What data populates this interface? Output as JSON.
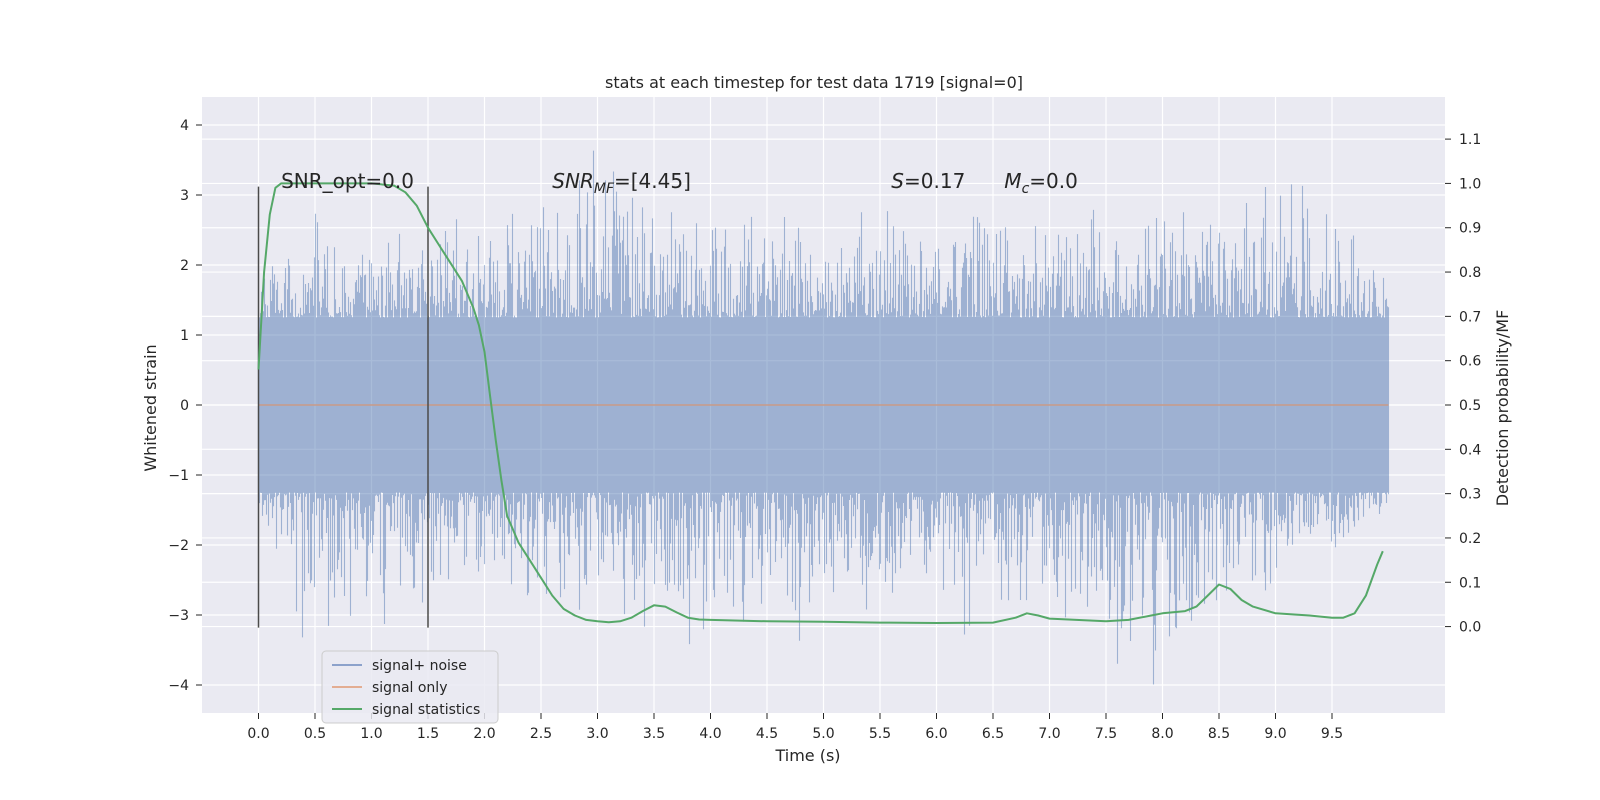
{
  "chart_data": {
    "type": "line",
    "title": "stats at each timestep for test data 1719 [signal=0]",
    "xlabel": "Time (s)",
    "ylabel": "Whitened strain",
    "y2label": "Detection probability/MF",
    "xlim": [
      -0.5,
      10.5
    ],
    "ylim": [
      -4.4,
      4.4
    ],
    "y2lim": [
      -0.195,
      1.195
    ],
    "x_ticks": [
      0.0,
      0.5,
      1.0,
      1.5,
      2.0,
      2.5,
      3.0,
      3.5,
      4.0,
      4.5,
      5.0,
      5.5,
      6.0,
      6.5,
      7.0,
      7.5,
      8.0,
      8.5,
      9.0,
      9.5
    ],
    "x_tick_labels": [
      "0.0",
      "0.5",
      "1.0",
      "1.5",
      "2.0",
      "2.5",
      "3.0",
      "3.5",
      "4.0",
      "4.5",
      "5.0",
      "5.5",
      "6.0",
      "6.5",
      "7.0",
      "7.5",
      "8.0",
      "8.5",
      "9.0",
      "9.5"
    ],
    "y_ticks": [
      -4,
      -3,
      -2,
      -1,
      0,
      1,
      2,
      3,
      4
    ],
    "y_tick_labels": [
      "−4",
      "−3",
      "−2",
      "−1",
      "0",
      "1",
      "2",
      "3",
      "4"
    ],
    "y2_ticks": [
      0.0,
      0.1,
      0.2,
      0.3,
      0.4,
      0.5,
      0.6,
      0.7,
      0.8,
      0.9,
      1.0,
      1.1
    ],
    "y2_tick_labels": [
      "0.0",
      "0.1",
      "0.2",
      "0.3",
      "0.4",
      "0.5",
      "0.6",
      "0.7",
      "0.8",
      "0.9",
      "1.0",
      "1.1"
    ],
    "grid": true,
    "legend_position": "lower-left",
    "series": [
      {
        "name": "signal+ noise",
        "color": "#4c72b0",
        "axis": "left",
        "kind": "whitened strain noise",
        "x_range": [
          0.0,
          10.0
        ],
        "envelope_upper": [
          [
            0.0,
            1.9
          ],
          [
            0.5,
            2.9
          ],
          [
            1.0,
            2.6
          ],
          [
            1.5,
            2.8
          ],
          [
            2.0,
            2.7
          ],
          [
            3.0,
            4.0
          ],
          [
            4.0,
            2.9
          ],
          [
            5.0,
            2.8
          ],
          [
            6.0,
            3.1
          ],
          [
            7.0,
            2.9
          ],
          [
            8.0,
            2.9
          ],
          [
            9.2,
            3.5
          ],
          [
            10.0,
            2.2
          ]
        ],
        "envelope_lower": [
          [
            0.0,
            -1.5
          ],
          [
            0.4,
            -3.65
          ],
          [
            1.0,
            -3.3
          ],
          [
            2.0,
            -2.8
          ],
          [
            3.0,
            -3.2
          ],
          [
            4.5,
            -3.8
          ],
          [
            5.5,
            -3.1
          ],
          [
            6.5,
            -3.5
          ],
          [
            7.5,
            -4.0
          ],
          [
            8.1,
            -4.05
          ],
          [
            9.0,
            -2.8
          ],
          [
            10.0,
            -1.5
          ]
        ]
      },
      {
        "name": "signal only",
        "color": "#dd8452",
        "axis": "left",
        "x": [
          0.0,
          10.0
        ],
        "y": [
          0.0,
          0.0
        ]
      },
      {
        "name": "signal statistics",
        "color": "#55a868",
        "axis": "right",
        "x": [
          0.0,
          0.05,
          0.1,
          0.15,
          0.2,
          0.3,
          0.5,
          0.8,
          1.0,
          1.2,
          1.3,
          1.4,
          1.5,
          1.6,
          1.7,
          1.8,
          1.9,
          1.95,
          2.0,
          2.05,
          2.1,
          2.15,
          2.2,
          2.3,
          2.4,
          2.5,
          2.6,
          2.7,
          2.8,
          2.9,
          3.0,
          3.1,
          3.2,
          3.3,
          3.4,
          3.5,
          3.6,
          3.7,
          3.8,
          3.9,
          4.0,
          4.5,
          5.0,
          5.5,
          6.0,
          6.5,
          6.7,
          6.8,
          6.9,
          7.0,
          7.5,
          7.7,
          7.9,
          8.0,
          8.2,
          8.3,
          8.4,
          8.5,
          8.6,
          8.7,
          8.8,
          9.0,
          9.3,
          9.5,
          9.6,
          9.7,
          9.8,
          9.9,
          9.95
        ],
        "y": [
          0.58,
          0.8,
          0.93,
          0.99,
          1.0,
          1.0,
          1.0,
          1.0,
          1.0,
          0.995,
          0.98,
          0.95,
          0.9,
          0.86,
          0.82,
          0.78,
          0.72,
          0.68,
          0.62,
          0.52,
          0.42,
          0.33,
          0.25,
          0.19,
          0.15,
          0.11,
          0.07,
          0.04,
          0.025,
          0.015,
          0.012,
          0.01,
          0.012,
          0.02,
          0.035,
          0.048,
          0.045,
          0.032,
          0.02,
          0.016,
          0.015,
          0.012,
          0.011,
          0.009,
          0.008,
          0.009,
          0.02,
          0.03,
          0.025,
          0.018,
          0.012,
          0.015,
          0.025,
          0.03,
          0.035,
          0.045,
          0.07,
          0.095,
          0.085,
          0.06,
          0.045,
          0.03,
          0.025,
          0.02,
          0.02,
          0.03,
          0.07,
          0.14,
          0.17
        ]
      }
    ],
    "vertical_markers": [
      0.0,
      1.5
    ],
    "annotations": [
      {
        "text": "SNR_opt=0.0",
        "x": 0.2,
        "y": 3.1
      },
      {
        "text": "SNR",
        "sub": "MF",
        "suffix": "=[4.45]",
        "x": 2.6,
        "y": 3.1,
        "italic": true
      },
      {
        "text": "S",
        "suffix": "=0.17",
        "x": 5.6,
        "y": 3.1,
        "italic": true
      },
      {
        "text": "M",
        "sub": "c",
        "suffix": "=0.0",
        "x": 6.6,
        "y": 3.1,
        "italic": true
      }
    ]
  }
}
